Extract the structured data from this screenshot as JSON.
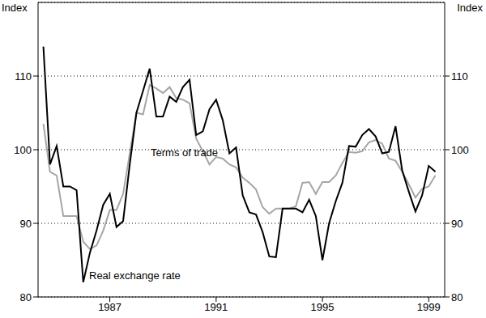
{
  "chart_data": {
    "type": "line",
    "y_label": "Index",
    "x": [
      1984.5,
      1984.75,
      1985,
      1985.25,
      1985.5,
      1985.75,
      1986,
      1986.25,
      1986.5,
      1986.75,
      1987,
      1987.25,
      1987.5,
      1987.75,
      1988,
      1988.25,
      1988.5,
      1988.75,
      1989,
      1989.25,
      1989.5,
      1989.75,
      1990,
      1990.25,
      1990.5,
      1990.75,
      1991,
      1991.25,
      1991.5,
      1991.75,
      1992,
      1992.25,
      1992.5,
      1992.75,
      1993,
      1993.25,
      1993.5,
      1993.75,
      1994,
      1994.25,
      1994.5,
      1994.75,
      1995,
      1995.25,
      1995.5,
      1995.75,
      1996,
      1996.25,
      1996.5,
      1996.75,
      1997,
      1997.25,
      1997.5,
      1997.75,
      1998,
      1998.25,
      1998.5,
      1998.75,
      1999,
      1999.25
    ],
    "series": [
      {
        "name": "Real exchange rate",
        "color": "#000000",
        "values": [
          114,
          98,
          100.5,
          95,
          95,
          94.5,
          82,
          86,
          89,
          92.5,
          94,
          89.5,
          90.3,
          98,
          105,
          108,
          111,
          104.5,
          104.5,
          107.2,
          106.5,
          108.5,
          109.5,
          102,
          102.5,
          105.5,
          106.8,
          104,
          99.5,
          100.3,
          93.8,
          91.5,
          91.2,
          88.8,
          85.5,
          85.4,
          92,
          92,
          92,
          91.5,
          93.2,
          91,
          85,
          90,
          93,
          95.5,
          100.5,
          100.4,
          102,
          102.8,
          101.8,
          99.5,
          99.7,
          103.2,
          97.2,
          94.3,
          91.6,
          93.8,
          97.8,
          97
        ]
      },
      {
        "name": "Terms of trade",
        "color": "#a6a6a6",
        "values": [
          103.5,
          97,
          96.5,
          91,
          91,
          91,
          87.5,
          86.5,
          87,
          89,
          91.8,
          91.8,
          94,
          99.5,
          105,
          104.8,
          108.8,
          108.3,
          107.7,
          108.5,
          107,
          106.8,
          106.3,
          101.5,
          99.8,
          98,
          99,
          98.8,
          98,
          97.6,
          96.2,
          95.5,
          94.6,
          92.2,
          91.3,
          92,
          92,
          92,
          92.3,
          95.5,
          95.6,
          94,
          95.6,
          95.6,
          96.5,
          98.2,
          99.7,
          99.6,
          99.8,
          101,
          101.3,
          100.8,
          98.8,
          98.5,
          97,
          95.3,
          93.5,
          94.7,
          95,
          96.5
        ]
      }
    ],
    "xlim": [
      1984.3,
      1999.6
    ],
    "xticks": [
      1987,
      1991,
      1995,
      1999
    ],
    "ylim": [
      80,
      120
    ],
    "yticks": [
      80,
      90,
      100,
      110
    ],
    "y2lim": [
      80,
      120
    ],
    "y2ticks": [
      80,
      90,
      100,
      110
    ],
    "grid": true
  }
}
